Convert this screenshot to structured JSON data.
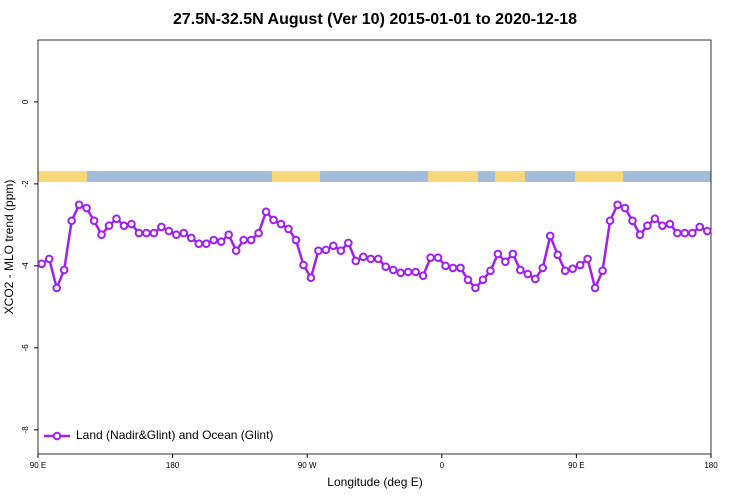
{
  "chart_data": {
    "type": "line",
    "title": "27.5N-32.5N August (Ver 10)   2015-01-01 to 2020-12-18",
    "x_label": "Longitude (deg E)",
    "y_label": "XCO2 - MLO trend (ppm)",
    "x": [
      92.5,
      97.5,
      102.5,
      107.5,
      112.5,
      117.5,
      122.5,
      127.5,
      132.5,
      137.5,
      142.5,
      147.5,
      152.5,
      157.5,
      162.5,
      167.5,
      172.5,
      177.5,
      182.5,
      187.5,
      192.5,
      197.5,
      202.5,
      207.5,
      212.5,
      217.5,
      222.5,
      227.5,
      232.5,
      237.5,
      242.5,
      247.5,
      252.5,
      257.5,
      262.5,
      267.5,
      272.5,
      277.5,
      282.5,
      287.5,
      292.5,
      297.5,
      302.5,
      307.5,
      312.5,
      317.5,
      322.5,
      327.5,
      332.5,
      337.5,
      342.5,
      347.5,
      352.5,
      357.5,
      362.5,
      367.5,
      372.5,
      377.5,
      382.5,
      387.5,
      392.5,
      397.5,
      402.5,
      407.5,
      412.5,
      417.5,
      422.5,
      427.5,
      432.5,
      437.5,
      442.5,
      447.5,
      452.5,
      457.5,
      462.5,
      467.5,
      472.5,
      477.5,
      482.5,
      487.5,
      492.5,
      497.5,
      502.5,
      507.5,
      512.5,
      517.5,
      522.5,
      527.5,
      532.5,
      537.5
    ],
    "series": [
      {
        "name": "Land (Nadir&Glint) and Ocean (Glint)",
        "color": "#a020f0",
        "values": [
          -3.95,
          -3.83,
          -4.54,
          -4.1,
          -2.9,
          -2.51,
          -2.59,
          -2.9,
          -3.24,
          -3.02,
          -2.85,
          -3.02,
          -2.98,
          -3.2,
          -3.2,
          -3.2,
          -3.05,
          -3.15,
          -3.24,
          -3.2,
          -3.32,
          -3.46,
          -3.46,
          -3.37,
          -3.41,
          -3.24,
          -3.63,
          -3.37,
          -3.37,
          -3.2,
          -2.68,
          -2.88,
          -2.98,
          -3.1,
          -3.37,
          -3.98,
          -4.29,
          -3.63,
          -3.61,
          -3.51,
          -3.63,
          -3.44,
          -3.88,
          -3.78,
          -3.83,
          -3.83,
          -4.02,
          -4.1,
          -4.17,
          -4.15,
          -4.15,
          -4.24,
          -3.8,
          -3.8,
          -4.0,
          -4.05,
          -4.05,
          -4.34,
          -4.54,
          -4.34,
          -4.12,
          -3.71,
          -3.9,
          -3.71,
          -4.1,
          -4.2,
          -4.32,
          -4.05,
          -3.27,
          -3.73,
          -4.12,
          -4.07,
          -3.98,
          -3.83,
          -4.54,
          -4.12,
          -2.9,
          -2.51,
          -2.59,
          -2.9,
          -3.24,
          -3.02,
          -2.85,
          -3.02,
          -2.98,
          -3.2,
          -3.2,
          -3.2,
          -3.05,
          -3.15
        ]
      }
    ],
    "xlim": [
      90,
      540
    ],
    "xticks": [
      {
        "value": 90,
        "label": "90 E"
      },
      {
        "value": 180,
        "label": "180"
      },
      {
        "value": 270,
        "label": "90 W"
      },
      {
        "value": 360,
        "label": "0"
      },
      {
        "value": 450,
        "label": "90 E"
      },
      {
        "value": 540,
        "label": "180"
      }
    ],
    "ylim": [
      -8.59,
      1.51
    ],
    "yticks": [
      0,
      -2,
      -4,
      -6,
      -8
    ],
    "legend": "bottomleft",
    "grid": false
  }
}
